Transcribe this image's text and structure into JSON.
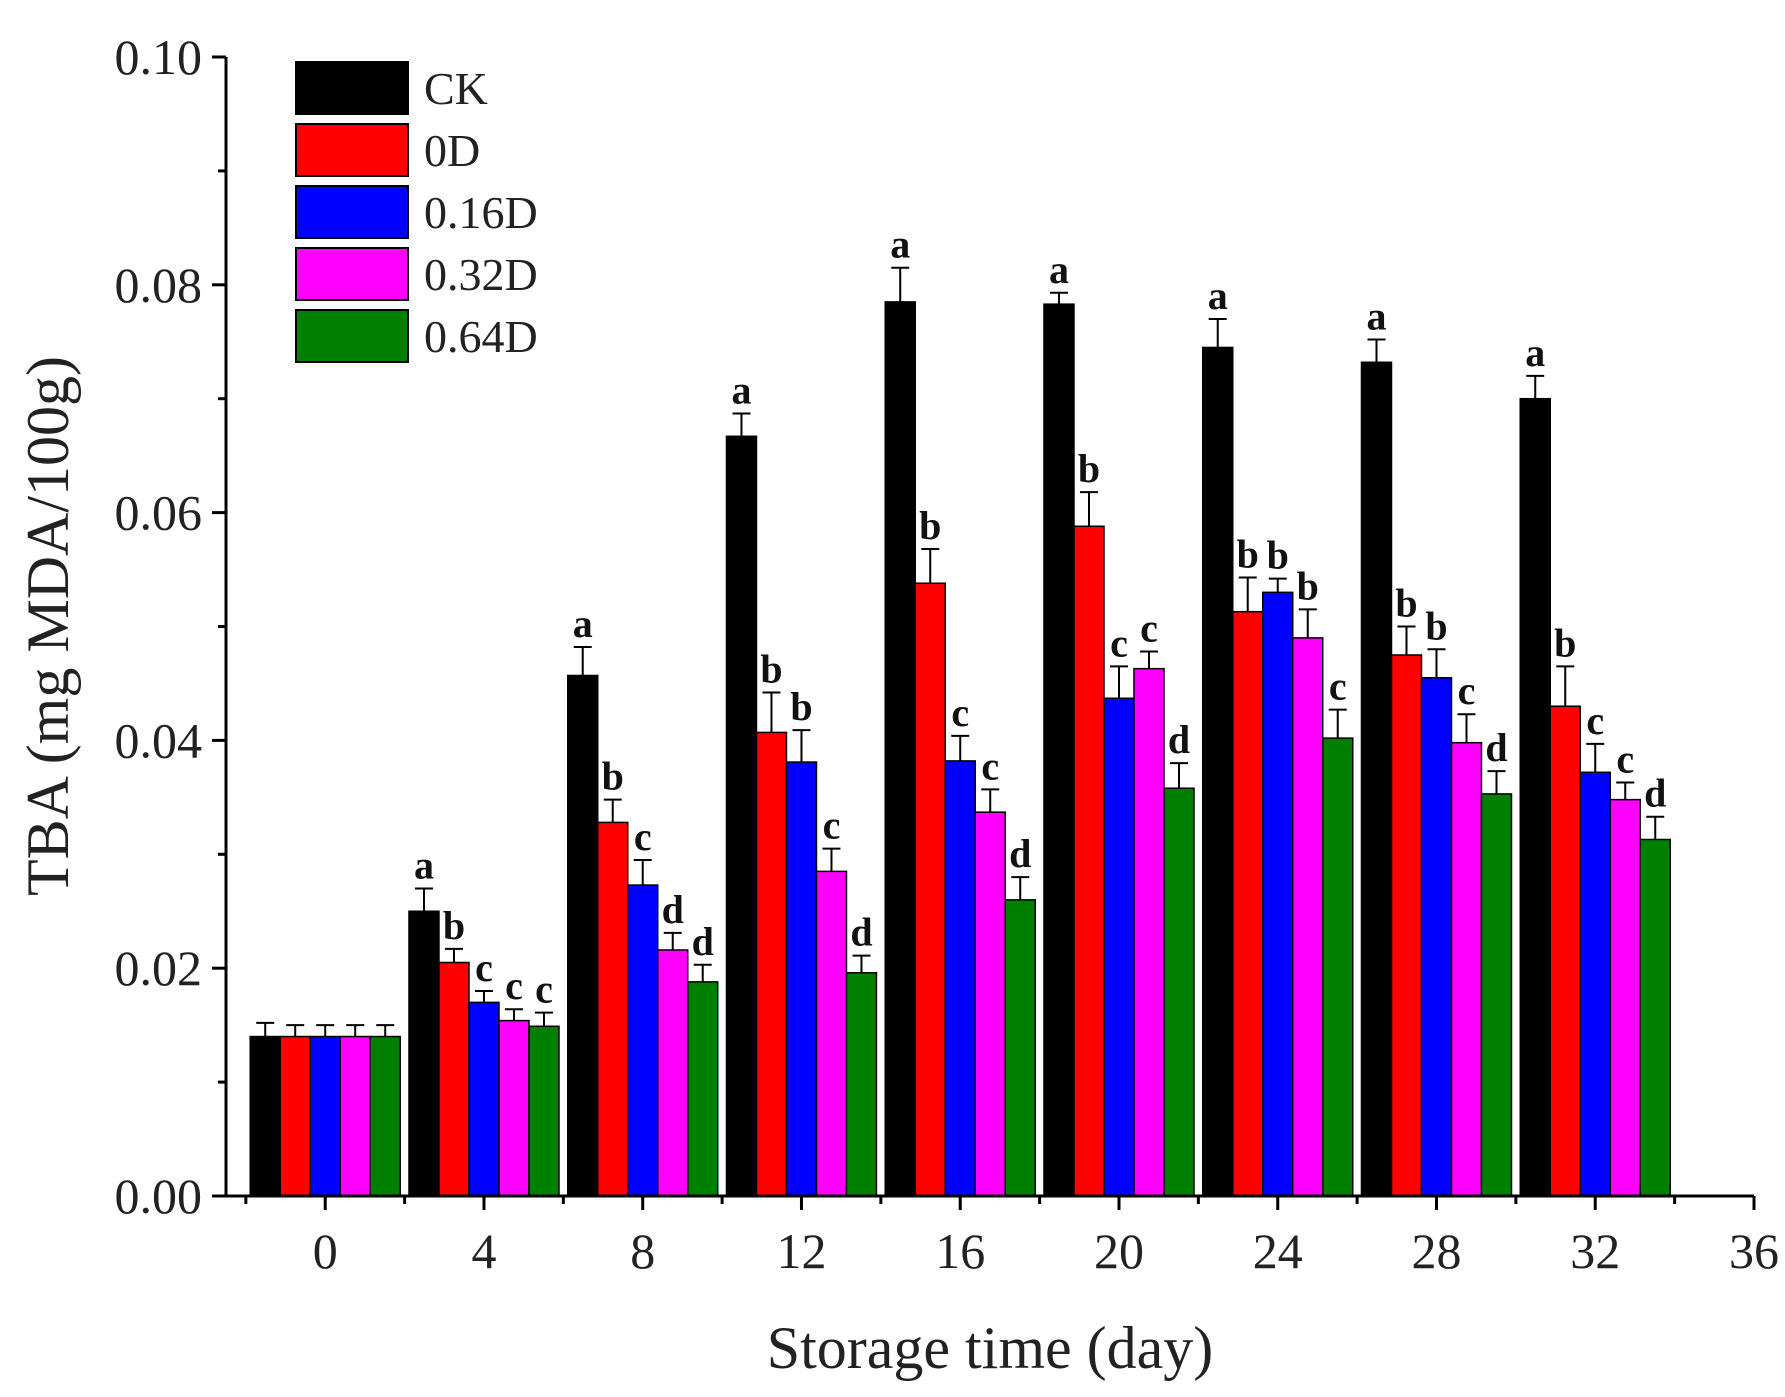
{
  "chart_data": {
    "type": "bar",
    "xlabel": "Storage time (day)",
    "ylabel": "TBA (mg MDA/100g)",
    "ylim": [
      0,
      0.1
    ],
    "yticks": [
      "0.00",
      "0.02",
      "0.04",
      "0.06",
      "0.08",
      "0.10"
    ],
    "xlim": [
      -2.5,
      36
    ],
    "xticks": [
      "0",
      "4",
      "8",
      "12",
      "16",
      "20",
      "24",
      "28",
      "32",
      "36"
    ],
    "categories": [
      "0",
      "4",
      "8",
      "12",
      "16",
      "20",
      "24",
      "28",
      "32"
    ],
    "legend_position": "top-left",
    "series": [
      {
        "name": "CK",
        "color": "#000000",
        "values": [
          0.014,
          0.025,
          0.0457,
          0.0667,
          0.0785,
          0.0783,
          0.0745,
          0.0732,
          0.07
        ],
        "errors": [
          0.0012,
          0.002,
          0.0025,
          0.002,
          0.003,
          0.001,
          0.0025,
          0.002,
          0.002
        ],
        "letters": [
          "",
          "a",
          "a",
          "a",
          "a",
          "a",
          "a",
          "a",
          "a"
        ]
      },
      {
        "name": "0D",
        "color": "#ff0000",
        "values": [
          0.014,
          0.0205,
          0.0328,
          0.0407,
          0.0538,
          0.0588,
          0.0513,
          0.0475,
          0.043
        ],
        "errors": [
          0.001,
          0.0012,
          0.002,
          0.0035,
          0.003,
          0.003,
          0.003,
          0.0025,
          0.0035
        ],
        "letters": [
          "",
          "b",
          "b",
          "b",
          "b",
          "b",
          "b",
          "b",
          "b"
        ]
      },
      {
        "name": "0.16D",
        "color": "#0000ff",
        "values": [
          0.014,
          0.017,
          0.0273,
          0.0381,
          0.0382,
          0.0437,
          0.053,
          0.0455,
          0.0372
        ],
        "errors": [
          0.001,
          0.001,
          0.0022,
          0.0028,
          0.0022,
          0.0028,
          0.0012,
          0.0025,
          0.0025
        ],
        "letters": [
          "",
          "c",
          "c",
          "b",
          "c",
          "c",
          "b",
          "b",
          "c"
        ]
      },
      {
        "name": "0.32D",
        "color": "#ff00ff",
        "values": [
          0.014,
          0.0154,
          0.0216,
          0.0285,
          0.0337,
          0.0463,
          0.049,
          0.0398,
          0.0348
        ],
        "errors": [
          0.001,
          0.001,
          0.0015,
          0.002,
          0.002,
          0.0015,
          0.0025,
          0.0025,
          0.0015
        ],
        "letters": [
          "",
          "c",
          "d",
          "c",
          "c",
          "c",
          "b",
          "c",
          "c"
        ]
      },
      {
        "name": "0.64D",
        "color": "#008000",
        "values": [
          0.014,
          0.0149,
          0.0188,
          0.0196,
          0.026,
          0.0358,
          0.0402,
          0.0353,
          0.0313
        ],
        "errors": [
          0.001,
          0.0012,
          0.0015,
          0.0015,
          0.002,
          0.0022,
          0.0025,
          0.002,
          0.002
        ],
        "letters": [
          "",
          "c",
          "d",
          "d",
          "d",
          "d",
          "c",
          "d",
          "d"
        ]
      }
    ]
  }
}
